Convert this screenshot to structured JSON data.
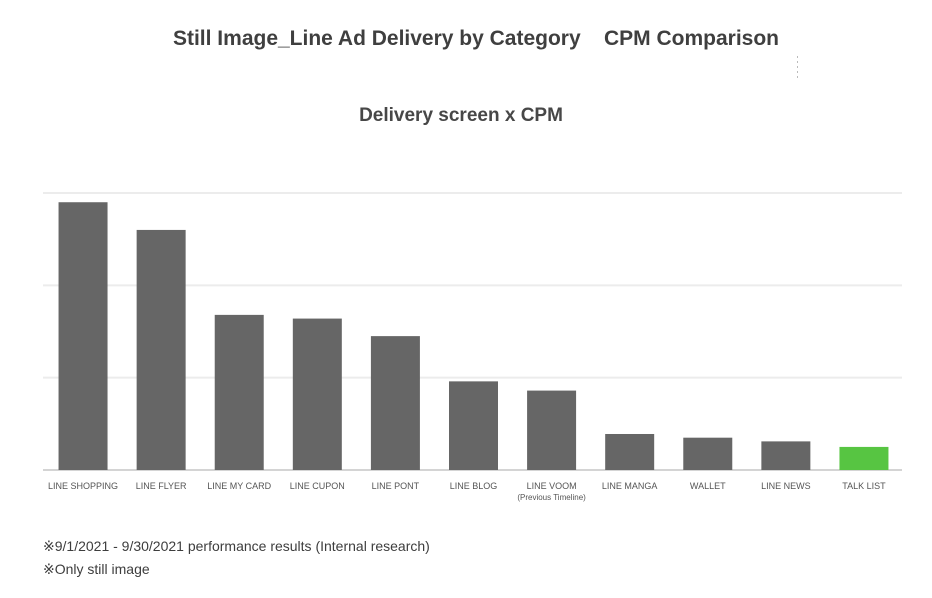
{
  "header": {
    "title": "Still Image_Line Ad Delivery by Category    CPM Comparison"
  },
  "chart_data": {
    "type": "bar",
    "title": "Delivery screen x CPM",
    "xlabel": "",
    "ylabel": "",
    "ylim": [
      0,
      3
    ],
    "grid": true,
    "categories": [
      [
        "LINE SHOPPING"
      ],
      [
        "LINE FLYER"
      ],
      [
        "LINE MY CARD"
      ],
      [
        "LINE CUPON"
      ],
      [
        "LINE PONT"
      ],
      [
        "LINE BLOG"
      ],
      [
        "LINE VOOM",
        "(Previous Timeline)"
      ],
      [
        "LINE MANGA"
      ],
      [
        "WALLET"
      ],
      [
        "LINE NEWS"
      ],
      [
        "TALK LIST"
      ]
    ],
    "values": [
      2.9,
      2.6,
      1.68,
      1.64,
      1.45,
      0.96,
      0.86,
      0.39,
      0.35,
      0.31,
      0.25
    ],
    "colors": [
      "#666666",
      "#666666",
      "#666666",
      "#666666",
      "#666666",
      "#666666",
      "#666666",
      "#666666",
      "#666666",
      "#666666",
      "#57c542"
    ],
    "gridline_color": "#ececec",
    "axis_color": "#d4d4d4"
  },
  "footnotes": {
    "line1": "※9/1/2021 - 9/30/2021 performance results (Internal research)",
    "line2": "※Only still image"
  }
}
